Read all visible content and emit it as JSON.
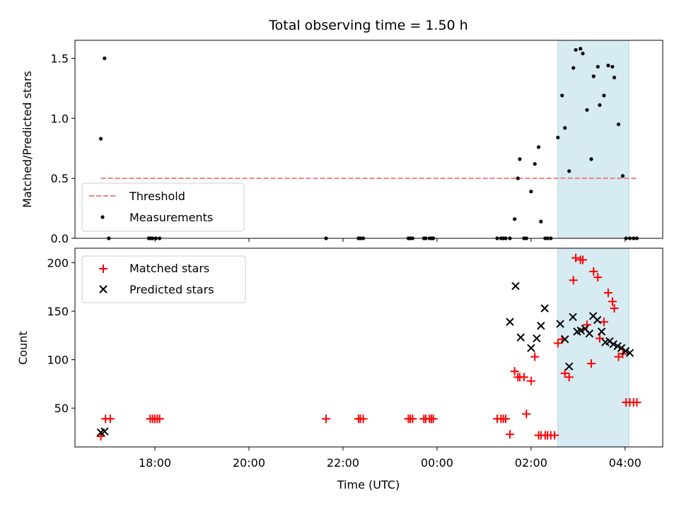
{
  "chart_data": {
    "title": "Total observing time = 1.50 h",
    "xlabel": "Time (UTC)",
    "x_ticks": [
      "18:00",
      "20:00",
      "22:00",
      "00:00",
      "02:00",
      "04:00"
    ],
    "x_units": "hours since 18:00 UTC (tick 00:00 = 6, 02:00 = 8, 04:00 = 10)",
    "xlim": [
      -1.7,
      10.8
    ],
    "highlight_span": {
      "x0": 8.57,
      "x1": 10.08,
      "color": "#add8e6"
    },
    "panels": [
      {
        "name": "ratio-panel",
        "type": "scatter",
        "ylabel": "Matched/Predicted stars",
        "ylim": [
          0,
          1.65
        ],
        "y_ticks": [
          0.0,
          0.5,
          1.0,
          1.5
        ],
        "y_tick_labels": [
          "0.0",
          "0.5",
          "1.0",
          "1.5"
        ],
        "legend": {
          "position": "lower-left",
          "entries": [
            "Threshold",
            "Measurements"
          ]
        },
        "threshold": {
          "name": "Threshold",
          "y": 0.5,
          "x0": -1.15,
          "x1": 10.28,
          "color": "#f08080"
        },
        "measurements": {
          "name": "Measurements",
          "color": "#000000",
          "x": [
            -1.15,
            -1.07,
            -0.98,
            -0.13,
            -0.09,
            -0.05,
            0.02,
            0.1,
            3.64,
            4.33,
            4.37,
            4.43,
            5.39,
            5.43,
            5.48,
            5.72,
            5.76,
            5.84,
            5.88,
            5.92,
            7.28,
            7.36,
            7.41,
            7.46,
            7.55,
            7.65,
            7.72,
            7.76,
            7.85,
            7.9,
            8.0,
            8.08,
            8.16,
            8.21,
            8.3,
            8.35,
            8.42,
            8.57,
            8.66,
            8.72,
            8.81,
            8.9,
            8.95,
            9.05,
            9.1,
            9.19,
            9.28,
            9.33,
            9.42,
            9.46,
            9.55,
            9.64,
            9.73,
            9.77,
            9.86,
            9.95,
            10.02,
            10.1,
            10.18,
            10.25
          ],
          "y": [
            0.83,
            1.5,
            0.0,
            0.0,
            0.0,
            0.0,
            0.0,
            0.0,
            0.0,
            0.0,
            0.0,
            0.0,
            0.0,
            0.0,
            0.0,
            0.0,
            0.0,
            0.0,
            0.0,
            0.0,
            0.0,
            0.0,
            0.0,
            0.0,
            0.0,
            0.16,
            0.5,
            0.66,
            0.0,
            0.0,
            0.39,
            0.62,
            0.76,
            0.14,
            0.0,
            0.0,
            0.0,
            0.84,
            1.19,
            0.92,
            0.56,
            1.42,
            1.57,
            1.58,
            1.54,
            1.07,
            0.66,
            1.35,
            1.43,
            1.11,
            1.19,
            1.44,
            1.43,
            1.34,
            0.95,
            0.52,
            0.0,
            0.0,
            0.0,
            0.0
          ]
        }
      },
      {
        "name": "count-panel",
        "type": "scatter",
        "ylabel": "Count",
        "ylim": [
          10,
          215
        ],
        "y_ticks": [
          50,
          100,
          150,
          200
        ],
        "y_tick_labels": [
          "50",
          "100",
          "150",
          "200"
        ],
        "legend": {
          "position": "upper-left",
          "entries": [
            "Matched stars",
            "Predicted stars"
          ]
        },
        "matched": {
          "name": "Matched stars",
          "color": "#ff0000",
          "x": [
            -1.15,
            -1.05,
            -0.95,
            -0.1,
            -0.05,
            0.0,
            0.05,
            0.1,
            3.64,
            4.33,
            4.37,
            4.43,
            5.39,
            5.43,
            5.48,
            5.72,
            5.76,
            5.84,
            5.88,
            5.92,
            7.28,
            7.36,
            7.41,
            7.46,
            7.55,
            7.65,
            7.72,
            7.76,
            7.85,
            7.9,
            8.0,
            8.08,
            8.16,
            8.21,
            8.3,
            8.35,
            8.42,
            8.5,
            8.57,
            8.66,
            8.72,
            8.81,
            8.9,
            8.95,
            9.05,
            9.1,
            9.19,
            9.28,
            9.33,
            9.42,
            9.46,
            9.55,
            9.64,
            9.73,
            9.77,
            9.86,
            9.95,
            10.02,
            10.1,
            10.18,
            10.25
          ],
          "y": [
            21,
            39,
            39,
            39,
            39,
            39,
            39,
            39,
            39,
            39,
            39,
            39,
            39,
            39,
            39,
            39,
            39,
            39,
            39,
            39,
            39,
            39,
            39,
            39,
            23,
            88,
            82,
            82,
            82,
            44,
            78,
            103,
            22,
            22,
            22,
            22,
            22,
            22,
            117,
            121,
            86,
            82,
            182,
            205,
            203,
            203,
            136,
            96,
            191,
            185,
            122,
            139,
            169,
            160,
            153,
            103,
            106,
            56,
            56,
            56,
            56
          ]
        },
        "predicted": {
          "name": "Predicted stars",
          "color": "#000000",
          "x": [
            -1.15,
            -1.07,
            7.55,
            7.67,
            7.78,
            8.0,
            8.12,
            8.21,
            8.29,
            8.62,
            8.72,
            8.81,
            8.89,
            8.98,
            9.06,
            9.15,
            9.24,
            9.32,
            9.41,
            9.5,
            9.58,
            9.67,
            9.75,
            9.84,
            9.92,
            10.01,
            10.1
          ],
          "y": [
            25,
            26,
            139,
            176,
            123,
            112,
            122,
            135,
            153,
            137,
            121,
            93,
            144,
            129,
            130,
            132,
            127,
            145,
            141,
            129,
            118,
            119,
            116,
            114,
            112,
            109,
            107
          ]
        }
      }
    ]
  }
}
